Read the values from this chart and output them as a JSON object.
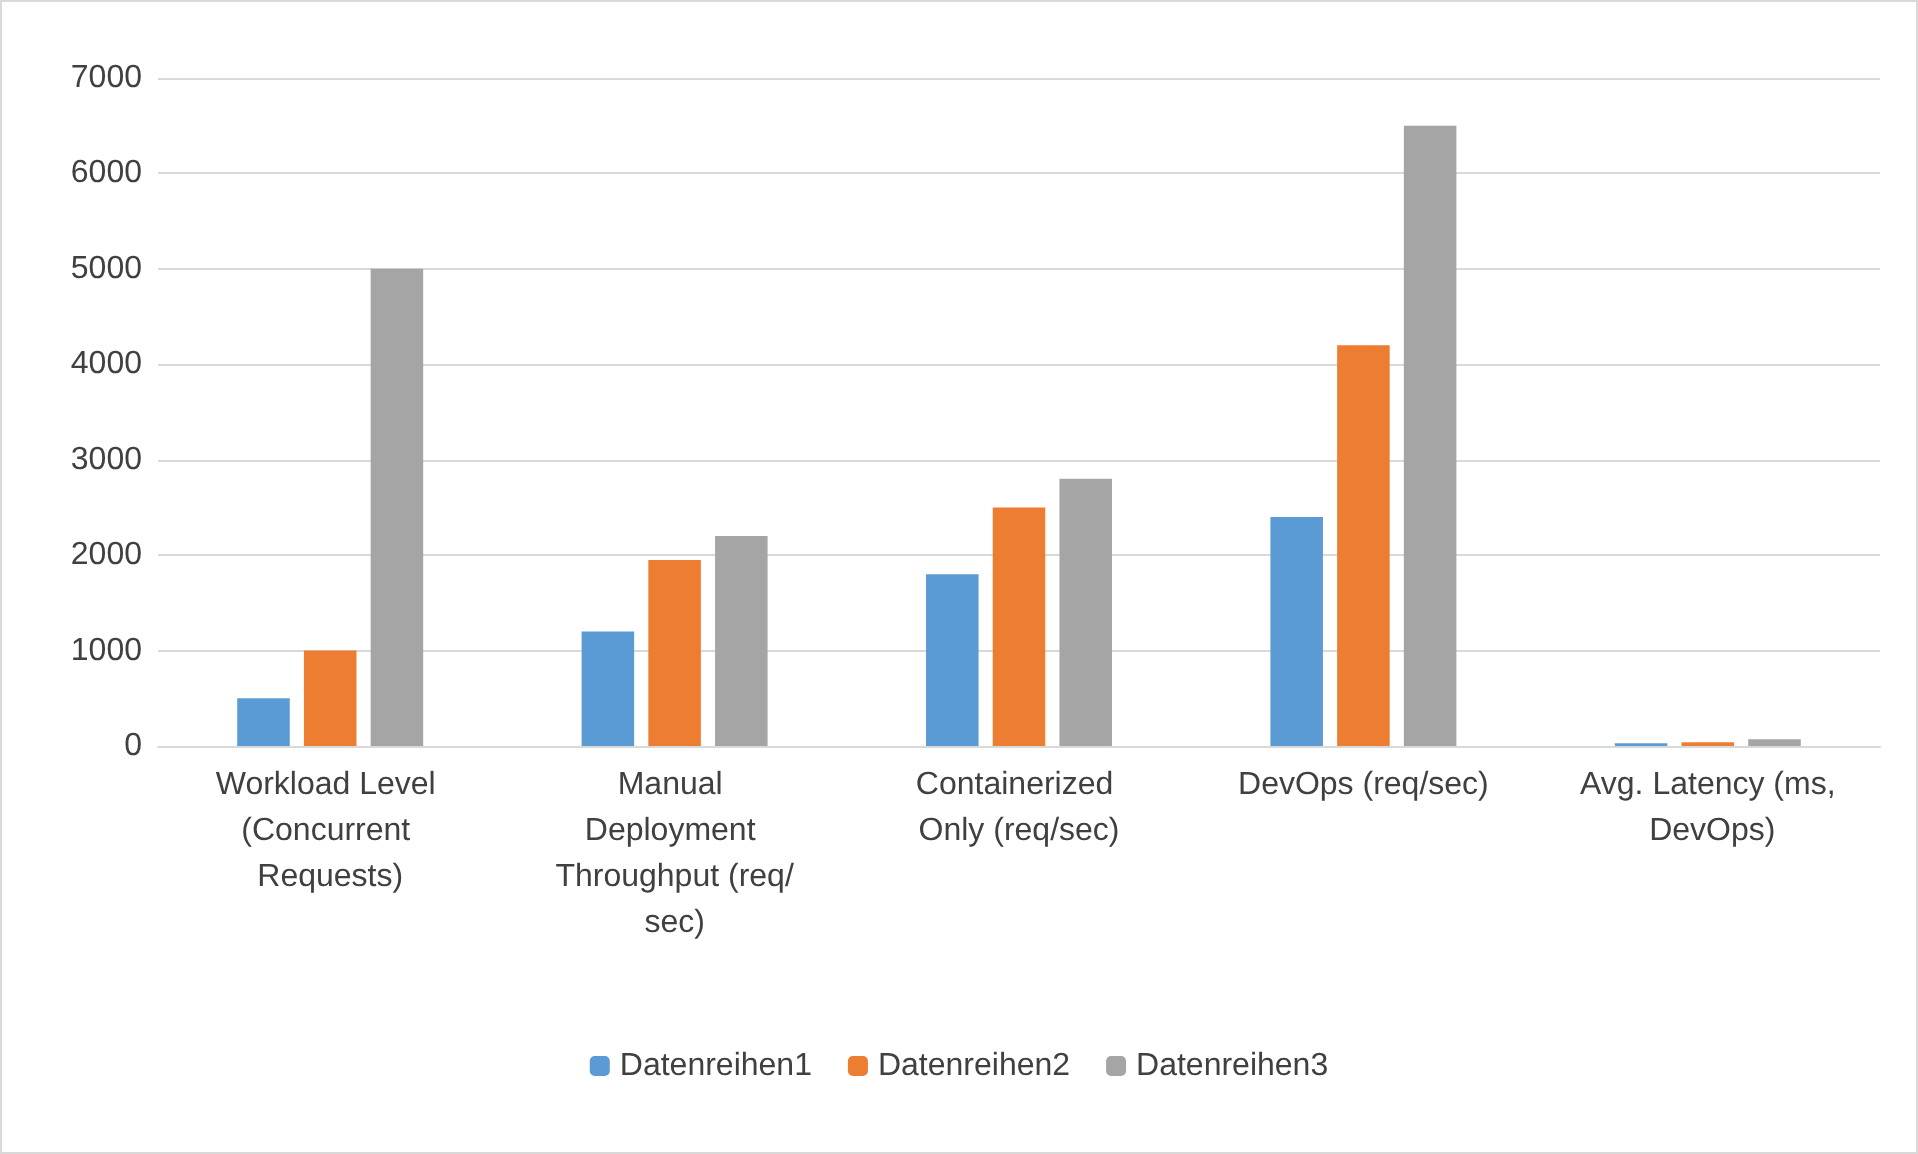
{
  "chart_data": {
    "type": "bar",
    "categories": [
      "Workload Level (Concurrent Requests)",
      "Manual Deployment Throughput (req/sec)",
      "Containerized Only (req/sec)",
      "DevOps (req/sec)",
      "Avg. Latency (ms, DevOps)"
    ],
    "series": [
      {
        "name": "Datenreihen1",
        "color": "#5b9bd5",
        "values": [
          500,
          1200,
          1800,
          2400,
          30
        ]
      },
      {
        "name": "Datenreihen2",
        "color": "#ed7d31",
        "values": [
          1000,
          1950,
          2500,
          4200,
          40
        ]
      },
      {
        "name": "Datenreihen3",
        "color": "#a5a5a5",
        "values": [
          5000,
          2200,
          2800,
          6500,
          70
        ]
      }
    ],
    "ylim": [
      0,
      7000
    ],
    "yticks": [
      0,
      1000,
      2000,
      3000,
      4000,
      5000,
      6000,
      7000
    ],
    "grid": "y",
    "legend": "bottom"
  }
}
